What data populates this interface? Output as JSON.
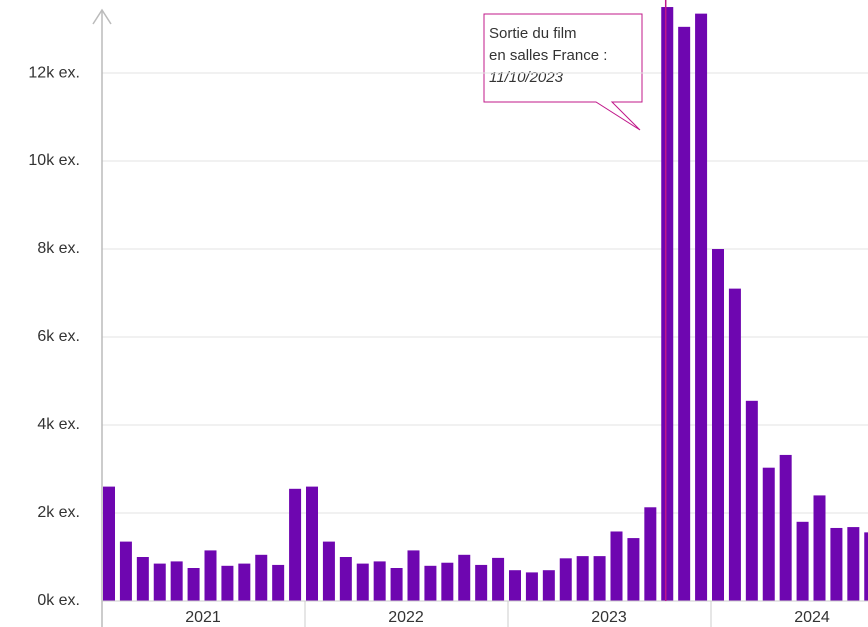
{
  "chart_data": {
    "type": "bar",
    "categories": [
      null,
      null,
      null,
      null,
      null,
      null,
      null,
      null,
      null,
      null,
      null,
      null,
      null,
      null,
      null,
      null,
      null,
      null,
      null,
      null,
      null,
      null,
      null,
      null,
      null,
      null,
      null,
      null,
      null,
      null,
      null,
      null,
      null,
      null,
      null,
      null,
      null,
      null,
      null,
      null,
      null,
      null,
      null,
      null,
      null,
      null
    ],
    "values": [
      2600,
      1350,
      1000,
      850,
      900,
      750,
      1150,
      800,
      850,
      1050,
      820,
      2550,
      2600,
      1350,
      1000,
      850,
      900,
      750,
      1150,
      800,
      870,
      1050,
      820,
      980,
      700,
      650,
      700,
      970,
      1020,
      1020,
      1580,
      1430,
      2130,
      13500,
      13050,
      13350,
      8000,
      7100,
      4550,
      3030,
      3320,
      1800,
      2400,
      1660,
      1680,
      1560
    ],
    "color": "#6e06b0",
    "year_labels": [
      "2021",
      "2022",
      "2023",
      "2024"
    ],
    "ylim": [
      0,
      13660
    ],
    "yticks": [
      {
        "value": 0,
        "label": "0k ex."
      },
      {
        "value": 2000,
        "label": "2k ex."
      },
      {
        "value": 4000,
        "label": "4k ex."
      },
      {
        "value": 6000,
        "label": "6k ex."
      },
      {
        "value": 8000,
        "label": "8k ex."
      },
      {
        "value": 10000,
        "label": "10k ex."
      },
      {
        "value": 12000,
        "label": "12k ex."
      }
    ],
    "grid": true,
    "annotation": {
      "lines": [
        "Sortie du film",
        "en salles France :",
        "11/10/2023"
      ],
      "color": "#c0188a"
    }
  }
}
